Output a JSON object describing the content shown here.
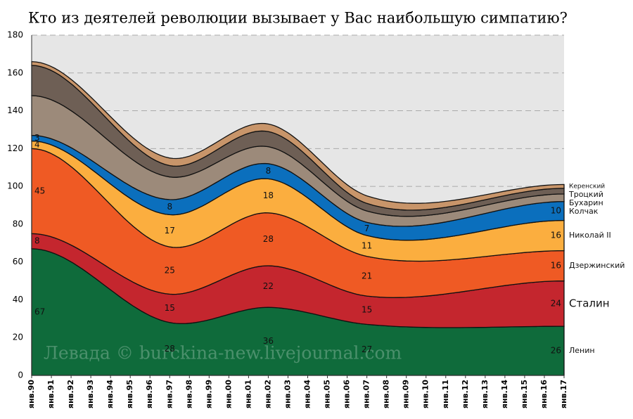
{
  "chart_data": {
    "type": "stacked_area",
    "title": "Кто из деятелей революции вызывает у Вас наибольшую симпатию?",
    "watermark": "Левада © burckina-new.livejournal.com",
    "categories": [
      "янв.90",
      "янв.91",
      "янв.92",
      "янв.93",
      "янв.94",
      "янв.95",
      "янв.96",
      "янв.97",
      "янв.98",
      "янв.99",
      "янв.00",
      "янв.01",
      "янв.02",
      "янв.03",
      "янв.04",
      "янв.05",
      "янв.06",
      "янв.07",
      "янв.08",
      "янв.09",
      "янв.10",
      "янв.11",
      "янв.12",
      "янв.13",
      "янв.14",
      "янв.15",
      "янв.16",
      "янв.17"
    ],
    "series": [
      {
        "name": "Ленин",
        "color": "#0f6b3b",
        "data_labels": true,
        "values": [
          67,
          null,
          null,
          null,
          null,
          null,
          null,
          28,
          null,
          null,
          null,
          null,
          36,
          null,
          null,
          null,
          null,
          27,
          null,
          null,
          null,
          null,
          null,
          null,
          null,
          null,
          null,
          26
        ]
      },
      {
        "name": "Сталин",
        "color": "#c4262e",
        "data_labels": true,
        "values": [
          8,
          null,
          null,
          null,
          null,
          null,
          null,
          15,
          null,
          null,
          null,
          null,
          22,
          null,
          null,
          null,
          null,
          15,
          null,
          null,
          null,
          null,
          null,
          null,
          null,
          null,
          null,
          24
        ]
      },
      {
        "name": "Дзержинский",
        "color": "#ef5a24",
        "data_labels": true,
        "values": [
          45,
          null,
          null,
          null,
          null,
          null,
          null,
          25,
          null,
          null,
          null,
          null,
          28,
          null,
          null,
          null,
          null,
          21,
          null,
          null,
          null,
          null,
          null,
          null,
          null,
          null,
          null,
          16
        ]
      },
      {
        "name": "Николай II",
        "color": "#fbae3f",
        "data_labels": true,
        "values": [
          4,
          null,
          null,
          null,
          null,
          null,
          null,
          17,
          null,
          null,
          null,
          null,
          18,
          null,
          null,
          null,
          null,
          11,
          null,
          null,
          null,
          null,
          null,
          null,
          null,
          null,
          null,
          16
        ]
      },
      {
        "name": "Колчак",
        "color": "#0b6fbd",
        "data_labels": true,
        "values": [
          3,
          null,
          null,
          null,
          null,
          null,
          null,
          8,
          null,
          null,
          null,
          null,
          8,
          null,
          null,
          null,
          null,
          7,
          null,
          null,
          null,
          null,
          null,
          null,
          null,
          null,
          null,
          10
        ]
      },
      {
        "name": "Бухарин",
        "color": "#9c8a7a",
        "data_labels": false,
        "values": [
          21,
          null,
          null,
          null,
          null,
          null,
          null,
          12,
          null,
          null,
          null,
          null,
          9,
          null,
          null,
          null,
          null,
          6,
          null,
          null,
          null,
          null,
          null,
          null,
          null,
          null,
          null,
          4
        ]
      },
      {
        "name": "Троцкий",
        "color": "#6e5f55",
        "data_labels": false,
        "values": [
          16,
          null,
          null,
          null,
          null,
          null,
          null,
          6,
          null,
          null,
          null,
          null,
          8,
          null,
          null,
          null,
          null,
          4,
          null,
          null,
          null,
          null,
          null,
          null,
          null,
          null,
          null,
          3
        ]
      },
      {
        "name": "Керенский",
        "color": "#c8956a",
        "data_labels": false,
        "values": [
          2,
          null,
          null,
          null,
          null,
          null,
          null,
          4,
          null,
          null,
          null,
          null,
          4,
          null,
          null,
          null,
          null,
          4,
          null,
          null,
          null,
          null,
          null,
          null,
          null,
          null,
          null,
          2
        ]
      }
    ],
    "ylim": [
      0,
      180
    ],
    "yticks": [
      0,
      20,
      40,
      60,
      80,
      100,
      120,
      140,
      160,
      180
    ],
    "grid": true
  }
}
